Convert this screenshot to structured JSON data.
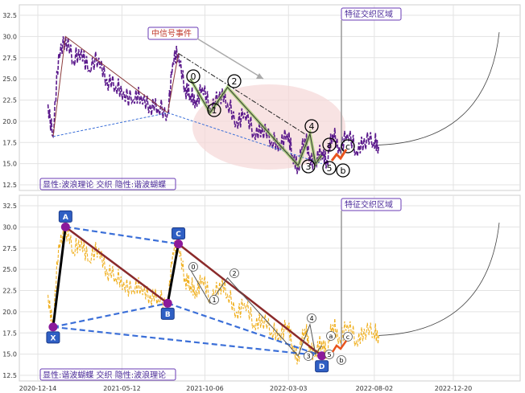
{
  "chart_data": [
    {
      "type": "line",
      "panel": "top",
      "ylim": [
        12.5,
        32.5
      ],
      "yticks": [
        "12.5",
        "15.0",
        "17.5",
        "20.0",
        "22.5",
        "25.0",
        "27.5",
        "30.0",
        "32.5"
      ],
      "grid": true,
      "legend_text": "显性:波浪理论 交织 隐性:谐波蝴蝶",
      "annotations": [
        "中信号事件",
        "特征交织区域"
      ],
      "wave_labels": [
        "0",
        "1",
        "2",
        "3",
        "4",
        "5",
        "a",
        "b",
        "c"
      ],
      "series": [
        {
          "x": [
            "2021-01-01",
            "2021-01-10",
            "2021-01-20",
            "2021-02-01",
            "2021-02-15",
            "2021-03-01",
            "2021-03-15",
            "2021-04-01",
            "2021-04-15",
            "2021-05-01",
            "2021-05-15",
            "2021-06-01",
            "2021-06-15",
            "2021-07-01",
            "2021-07-15",
            "2021-08-01",
            "2021-08-10",
            "2021-08-20",
            "2021-09-01",
            "2021-09-10",
            "2021-09-20",
            "2021-10-01",
            "2021-10-15",
            "2021-11-01",
            "2021-11-15",
            "2021-12-01",
            "2021-12-15",
            "2022-01-01",
            "2022-01-15",
            "2022-02-01",
            "2022-02-15",
            "2022-03-01",
            "2022-03-10",
            "2022-03-20",
            "2022-04-01",
            "2022-04-10",
            "2022-04-20",
            "2022-05-01",
            "2022-05-10",
            "2022-05-20",
            "2022-06-01",
            "2022-06-15",
            "2022-07-01",
            "2022-07-15",
            "2022-08-01",
            "2022-08-10"
          ],
          "y": [
            22,
            18.2,
            28,
            30,
            27,
            28.5,
            26,
            27.5,
            25,
            24,
            23.5,
            22.5,
            23,
            22,
            21.5,
            21,
            27,
            28,
            24,
            23,
            22.5,
            24,
            21.5,
            23.5,
            22,
            20,
            21,
            18.5,
            19.5,
            17.5,
            17.5,
            18.5,
            16,
            14.8,
            18,
            16,
            15,
            16.5,
            15.5,
            18.5,
            17,
            18.5,
            16.5,
            18,
            17.5,
            17.2
          ]
        }
      ]
    },
    {
      "type": "line",
      "panel": "bottom",
      "ylim": [
        12.5,
        32.5
      ],
      "yticks": [
        "12.5",
        "15.0",
        "17.5",
        "20.0",
        "22.5",
        "25.0",
        "27.5",
        "30.0",
        "32.5"
      ],
      "xticks": [
        "2020-12-14",
        "2021-05-12",
        "2021-10-06",
        "2022-03-03",
        "2022-08-02",
        "2022-12-20"
      ],
      "grid": true,
      "legend_text": "显性:谐波蝴蝶 交织 隐性:波浪理论",
      "annotations": [
        "特征交织区域"
      ],
      "point_labels": [
        "X",
        "A",
        "B",
        "C",
        "D"
      ],
      "wave_labels": [
        "0",
        "1",
        "2",
        "3",
        "4",
        "5",
        "a",
        "b",
        "c"
      ],
      "series": [
        {
          "x": [
            "2021-01-01",
            "2021-01-10",
            "2021-01-20",
            "2021-02-01",
            "2021-02-15",
            "2021-03-01",
            "2021-03-15",
            "2021-04-01",
            "2021-04-15",
            "2021-05-01",
            "2021-05-15",
            "2021-06-01",
            "2021-06-15",
            "2021-07-01",
            "2021-07-15",
            "2021-08-01",
            "2021-08-10",
            "2021-08-20",
            "2021-09-01",
            "2021-09-10",
            "2021-09-20",
            "2021-10-01",
            "2021-10-15",
            "2021-11-01",
            "2021-11-15",
            "2021-12-01",
            "2021-12-15",
            "2022-01-01",
            "2022-01-15",
            "2022-02-01",
            "2022-02-15",
            "2022-03-01",
            "2022-03-10",
            "2022-03-20",
            "2022-04-01",
            "2022-04-10",
            "2022-04-20",
            "2022-05-01",
            "2022-05-10",
            "2022-05-20",
            "2022-06-01",
            "2022-06-15",
            "2022-07-01",
            "2022-07-15",
            "2022-08-01",
            "2022-08-10"
          ],
          "y": [
            22,
            18.2,
            28,
            30,
            27,
            28.5,
            26,
            27.5,
            25,
            24,
            23.5,
            22.5,
            23,
            22,
            21.5,
            21,
            27,
            28,
            24,
            23,
            22.5,
            24,
            21.5,
            23.5,
            22,
            20,
            21,
            18.5,
            19.5,
            17.5,
            17.5,
            18.5,
            16,
            14.8,
            18,
            16,
            15,
            16.5,
            15.5,
            18.5,
            17,
            18.5,
            16.5,
            18,
            17.5,
            17.2
          ]
        }
      ]
    }
  ],
  "colors": {
    "top_line": "#5b1a8c",
    "bottom_line": "#f0b020",
    "harmonic": "#3b6fd8",
    "point": "#8b1a9a",
    "highlight": "#f5d7d7",
    "label_border": "#6a3bb5",
    "label_text": "#4b2a9a",
    "signal_text": "#c0392b"
  }
}
